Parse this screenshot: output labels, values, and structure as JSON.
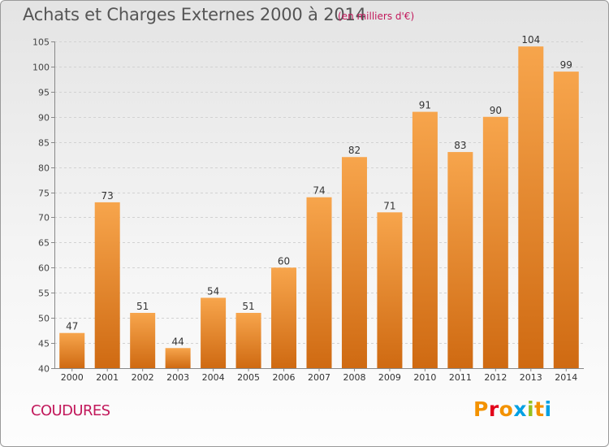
{
  "header": {
    "title": "Achats et Charges Externes 2000 à 2014",
    "subtitle": "(en milliers d'€)"
  },
  "footer": {
    "commune": "COUDURES",
    "logo_text": "Proxiti"
  },
  "colors": {
    "bar_light": "#f7a54c",
    "bar_dark": "#cf6a12",
    "accent": "#c2185b",
    "logo": [
      "#f39200",
      "#e2001a",
      "#f39200",
      "#00a0e3",
      "#95c11f",
      "#f39200",
      "#00a0e3"
    ]
  },
  "chart_data": {
    "type": "bar",
    "categories": [
      "2000",
      "2001",
      "2002",
      "2003",
      "2004",
      "2005",
      "2006",
      "2007",
      "2008",
      "2009",
      "2010",
      "2011",
      "2012",
      "2013",
      "2014"
    ],
    "values": [
      47,
      73,
      51,
      44,
      54,
      51,
      60,
      74,
      82,
      71,
      91,
      83,
      90,
      104,
      99
    ],
    "title": "Achats et Charges Externes 2000 à 2014",
    "subtitle": "(en milliers d'€)",
    "ylim": [
      40,
      105
    ],
    "yticks": [
      40,
      45,
      50,
      55,
      60,
      65,
      70,
      75,
      80,
      85,
      90,
      95,
      100,
      105
    ],
    "grid": true
  }
}
